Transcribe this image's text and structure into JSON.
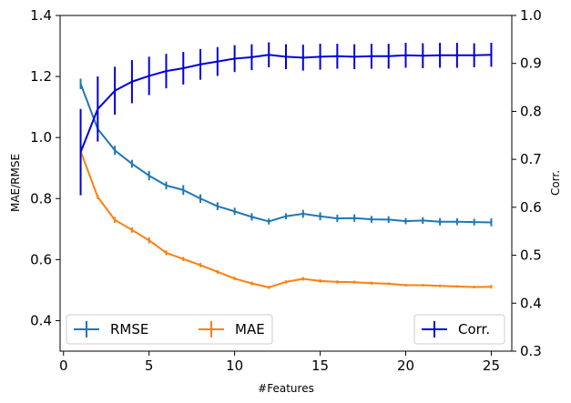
{
  "chart_data": {
    "type": "line",
    "xlabel": "#Features",
    "ylabel_left": "MAE/RMSE",
    "ylabel_right": "Corr.",
    "ylabel_right_color": "#0000dd",
    "xlim": [
      -0.2,
      26.2
    ],
    "xticks": [
      0,
      5,
      10,
      15,
      20,
      25
    ],
    "ylim_left": [
      0.3,
      1.4
    ],
    "yticks_left": [
      0.4,
      0.6,
      0.8,
      1.0,
      1.2,
      1.4
    ],
    "ytick_labels_left": [
      "0.4",
      "0.6",
      "0.8",
      "1.0",
      "1.2",
      "1.4"
    ],
    "ylim_right": [
      0.3,
      1.0
    ],
    "yticks_right": [
      0.3,
      0.4,
      0.5,
      0.6,
      0.7,
      0.8,
      0.9,
      1.0
    ],
    "ytick_labels_right": [
      "0.3",
      "0.4",
      "0.5",
      "0.6",
      "0.7",
      "0.8",
      "0.9",
      "1.0"
    ],
    "x": [
      1,
      2,
      3,
      4,
      5,
      6,
      7,
      8,
      9,
      10,
      11,
      12,
      13,
      14,
      15,
      16,
      17,
      18,
      19,
      20,
      21,
      22,
      23,
      24,
      25
    ],
    "series": [
      {
        "name": "RMSE",
        "axis": "left",
        "color": "#1f77b4",
        "values": [
          1.176,
          1.028,
          0.958,
          0.914,
          0.875,
          0.843,
          0.828,
          0.8,
          0.775,
          0.758,
          0.74,
          0.725,
          0.742,
          0.75,
          0.742,
          0.735,
          0.736,
          0.732,
          0.731,
          0.726,
          0.728,
          0.724,
          0.724,
          0.723,
          0.722
        ],
        "errors": [
          0.017,
          0.012,
          0.015,
          0.013,
          0.015,
          0.013,
          0.016,
          0.014,
          0.013,
          0.012,
          0.012,
          0.01,
          0.01,
          0.013,
          0.013,
          0.012,
          0.012,
          0.011,
          0.011,
          0.01,
          0.011,
          0.012,
          0.011,
          0.011,
          0.013
        ]
      },
      {
        "name": "MAE",
        "axis": "left",
        "color": "#ff7f0e",
        "values": [
          0.955,
          0.805,
          0.73,
          0.697,
          0.663,
          0.622,
          0.602,
          0.582,
          0.56,
          0.538,
          0.522,
          0.509,
          0.527,
          0.537,
          0.53,
          0.527,
          0.526,
          0.523,
          0.521,
          0.516,
          0.516,
          0.514,
          0.512,
          0.51,
          0.511
        ],
        "errors": [
          0.006,
          0.007,
          0.01,
          0.009,
          0.01,
          0.008,
          0.007,
          0.007,
          0.006,
          0.006,
          0.006,
          0.005,
          0.005,
          0.006,
          0.006,
          0.005,
          0.005,
          0.005,
          0.004,
          0.004,
          0.004,
          0.004,
          0.004,
          0.004,
          0.006
        ]
      },
      {
        "name": "Corr.",
        "axis": "right",
        "color": "#0000dd",
        "values": [
          0.715,
          0.805,
          0.843,
          0.862,
          0.874,
          0.884,
          0.89,
          0.898,
          0.904,
          0.91,
          0.913,
          0.918,
          0.914,
          0.912,
          0.914,
          0.915,
          0.914,
          0.915,
          0.915,
          0.917,
          0.916,
          0.917,
          0.917,
          0.917,
          0.918
        ],
        "errors": [
          0.09,
          0.068,
          0.05,
          0.045,
          0.04,
          0.036,
          0.034,
          0.032,
          0.03,
          0.028,
          0.027,
          0.026,
          0.026,
          0.027,
          0.027,
          0.026,
          0.026,
          0.026,
          0.026,
          0.026,
          0.026,
          0.026,
          0.026,
          0.025,
          0.025
        ]
      }
    ],
    "legends": [
      {
        "position": "lower-left",
        "columns": 2,
        "entries": [
          "RMSE",
          "MAE"
        ]
      },
      {
        "position": "lower-right",
        "columns": 1,
        "entries": [
          "Corr."
        ]
      }
    ],
    "grid": false
  }
}
